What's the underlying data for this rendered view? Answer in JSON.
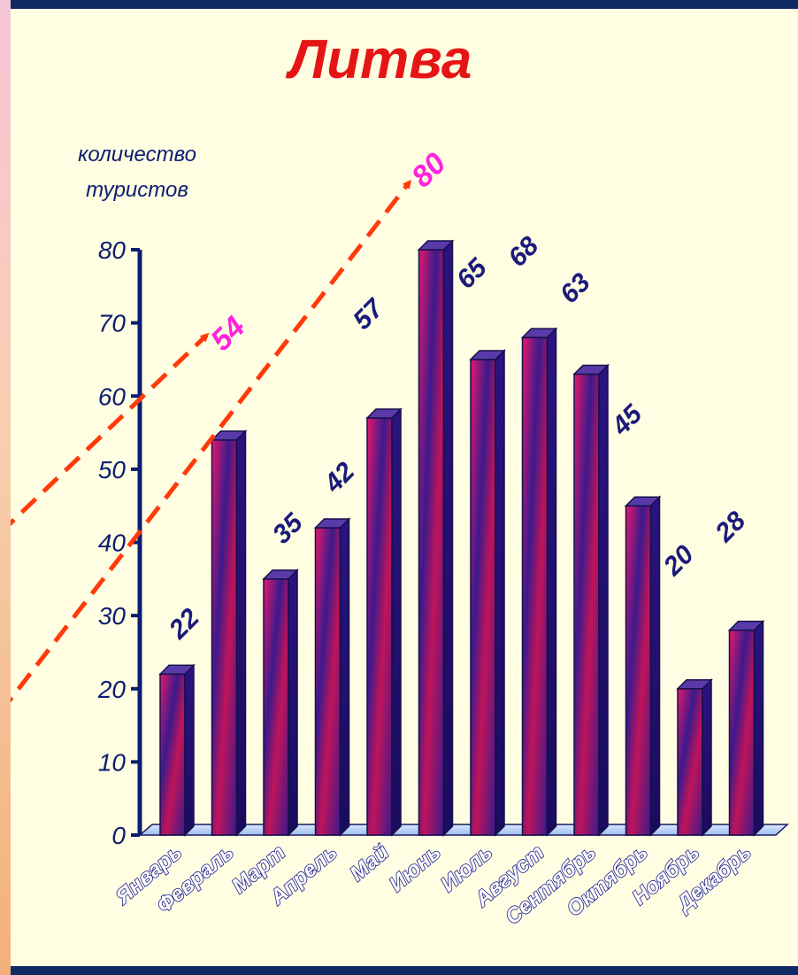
{
  "chart_data": {
    "type": "bar",
    "title": "Литва",
    "ylabel_lines": [
      "количество",
      "туристов"
    ],
    "xlabel": "",
    "categories": [
      "Январь",
      "Февраль",
      "Март",
      "Апрель",
      "Май",
      "Июнь",
      "Июль",
      "Август",
      "Сентябрь",
      "Октябрь",
      "Ноябрь",
      "Декабрь"
    ],
    "values": [
      22,
      54,
      35,
      42,
      57,
      80,
      65,
      68,
      63,
      45,
      20,
      28
    ],
    "ylim": [
      0,
      80
    ],
    "yticks": [
      0,
      10,
      20,
      30,
      40,
      50,
      60,
      70,
      80
    ],
    "grid": false,
    "annotations": [
      {
        "text": "54",
        "target_category": "Февраль"
      },
      {
        "text": "80",
        "target_category": "Июнь"
      }
    ],
    "colors": {
      "bar_dark": "#3b1a8c",
      "bar_mid": "#c0145a",
      "bar_light": "#e8186a",
      "title": "#e61515",
      "axis": "#0c1e70",
      "annotation_text": "#ff22dd",
      "annotation_arrow": "#ff3a0a",
      "background": "#fffde2",
      "frame": "#0f2a63"
    }
  }
}
